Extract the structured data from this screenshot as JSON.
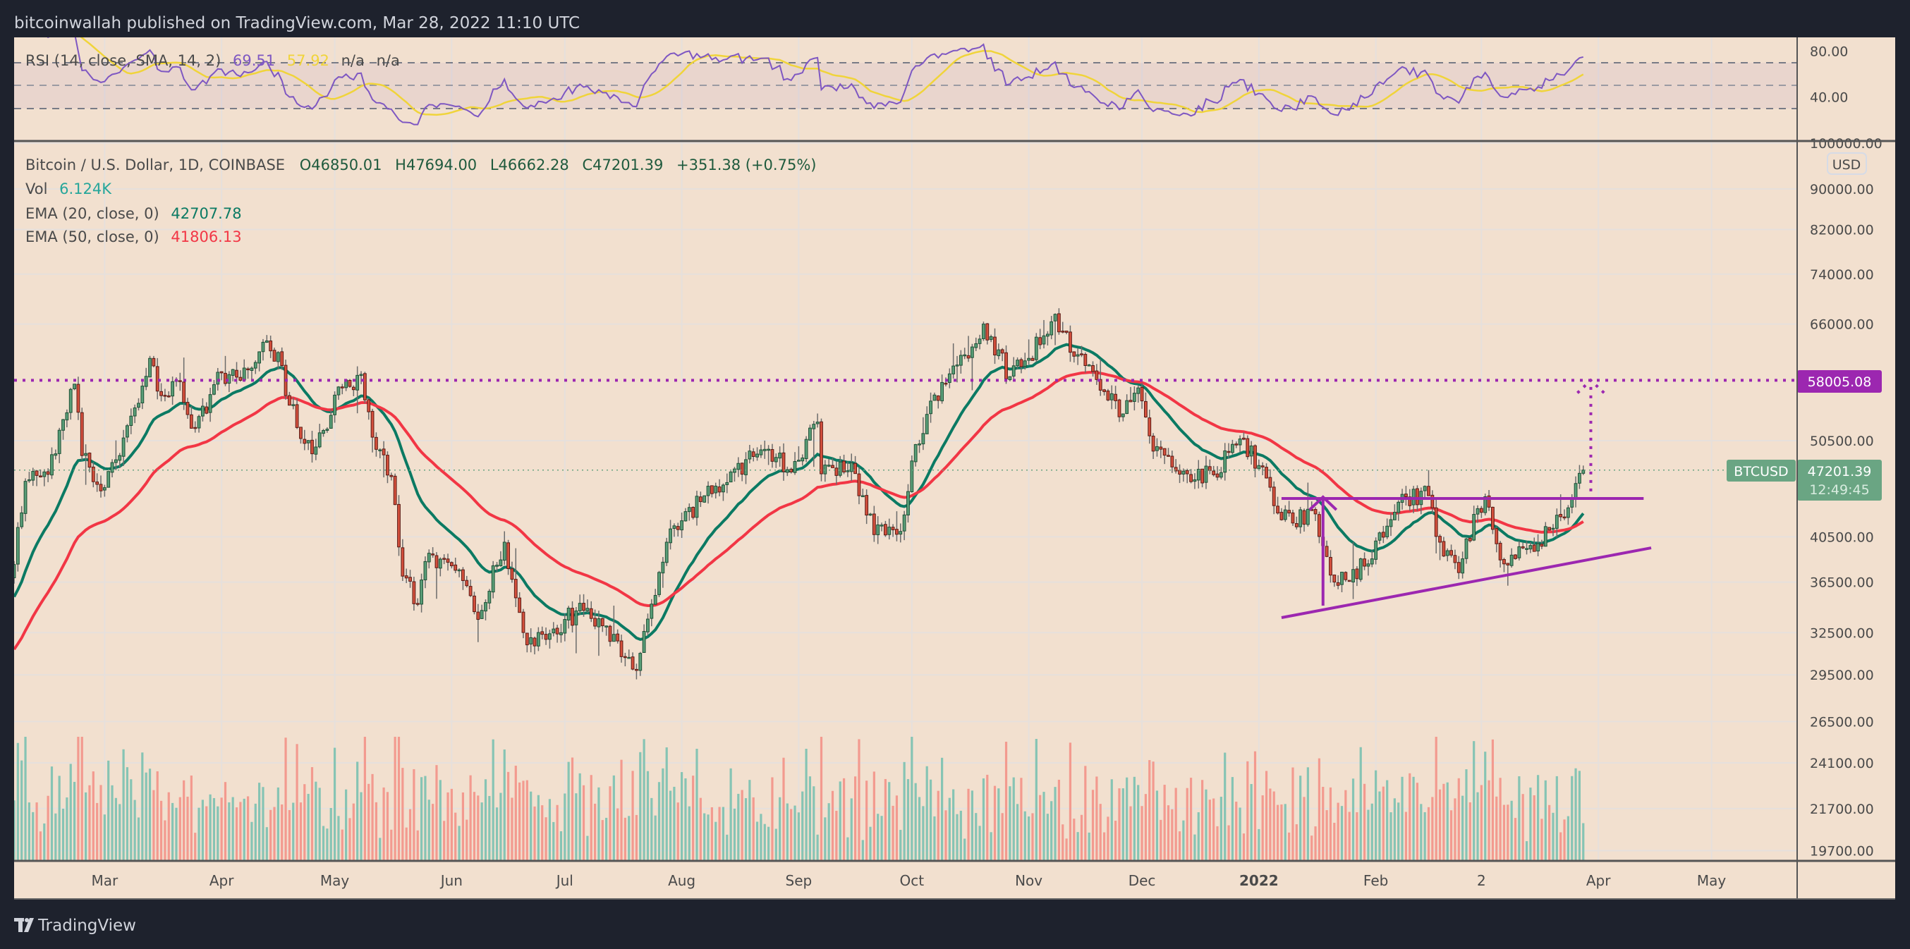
{
  "header": {
    "published": "bitcoinwallah published on TradingView.com, Mar 28, 2022 11:10 UTC"
  },
  "footer": {
    "brand": "TradingView"
  },
  "rsi_legend": {
    "label": "RSI (14, close, SMA, 14, 2)",
    "rsi": "69.51",
    "sma": "57.92",
    "na1": "n/a",
    "na2": "n/a"
  },
  "rsi_axis": [
    {
      "label": "80.00",
      "value": 80
    },
    {
      "label": "40.00",
      "value": 40
    }
  ],
  "legend": {
    "symbol": "Bitcoin / U.S. Dollar, 1D, COINBASE",
    "open": "O46850.01",
    "high": "H47694.00",
    "low": "L46662.28",
    "close": "C47201.39",
    "change": "+351.38 (+0.75%)",
    "vol_label": "Vol",
    "vol_value": "6.124K",
    "ema20_label": "EMA (20, close, 0)",
    "ema20_value": "42707.78",
    "ema50_label": "EMA (50, close, 0)",
    "ema50_value": "41806.13"
  },
  "price_axis": {
    "currency": "USD",
    "ticks": [
      {
        "label": "100000.00",
        "value": 100000
      },
      {
        "label": "90000.00",
        "value": 90000
      },
      {
        "label": "82000.00",
        "value": 82000
      },
      {
        "label": "74000.00",
        "value": 74000
      },
      {
        "label": "66000.00",
        "value": 66000
      },
      {
        "label": "50500.00",
        "value": 50500
      },
      {
        "label": "40500.00",
        "value": 40500
      },
      {
        "label": "36500.00",
        "value": 36500
      },
      {
        "label": "32500.00",
        "value": 32500
      },
      {
        "label": "29500.00",
        "value": 29500
      },
      {
        "label": "26500.00",
        "value": 26500
      },
      {
        "label": "24100.00",
        "value": 24100
      },
      {
        "label": "21700.00",
        "value": 21700
      },
      {
        "label": "19700.00",
        "value": 19700
      }
    ],
    "target_label": "58005.08",
    "symbol_tag": "BTCUSD",
    "last_price": "47201.39",
    "countdown": "12:49:45"
  },
  "time_axis": [
    {
      "label": "Mar",
      "date": "2021-03-01"
    },
    {
      "label": "Apr",
      "date": "2021-04-01"
    },
    {
      "label": "May",
      "date": "2021-05-01"
    },
    {
      "label": "Jun",
      "date": "2021-06-01"
    },
    {
      "label": "Jul",
      "date": "2021-07-01"
    },
    {
      "label": "Aug",
      "date": "2021-08-01"
    },
    {
      "label": "Sep",
      "date": "2021-09-01"
    },
    {
      "label": "Oct",
      "date": "2021-10-01"
    },
    {
      "label": "Nov",
      "date": "2021-11-01"
    },
    {
      "label": "Dec",
      "date": "2021-12-01"
    },
    {
      "label": "2022",
      "date": "2022-01-01",
      "bold": true
    },
    {
      "label": "Feb",
      "date": "2022-02-01"
    },
    {
      "label": "2",
      "date": "2022-03-01"
    },
    {
      "label": "Apr",
      "date": "2022-04-01"
    },
    {
      "label": "May",
      "date": "2022-05-01"
    }
  ],
  "colors": {
    "background": "#f2e0cf",
    "frame": "#1e222d",
    "up": "#5a9e78",
    "up_border": "#1d4f35",
    "down": "#d5503d",
    "down_border": "#5a1a14",
    "vol_up": "#86c4b4",
    "vol_down": "#f39a8f",
    "ema20": "#0b7a63",
    "ema50": "#f23645",
    "rsi": "#7e57c2",
    "rsi_sma": "#f0d43a",
    "drawing": "#9c27b0",
    "last_price": "#6aa583"
  },
  "chart_data": {
    "type": "candlestick",
    "title": "Bitcoin / U.S. Dollar, 1D, COINBASE",
    "scale": "log",
    "start_date": "2021-02-05",
    "last_candle": {
      "date": "2022-03-28",
      "open": 46850.01,
      "high": 47694.0,
      "low": 46662.28,
      "close": 47201.39
    },
    "close_anchors": [
      [
        "2021-02-05",
        38000
      ],
      [
        "2021-02-08",
        46000
      ],
      [
        "2021-02-13",
        47000
      ],
      [
        "2021-02-16",
        49000
      ],
      [
        "2021-02-21",
        57500
      ],
      [
        "2021-02-23",
        48800
      ],
      [
        "2021-02-28",
        45000
      ],
      [
        "2021-03-05",
        48800
      ],
      [
        "2021-03-13",
        61000
      ],
      [
        "2021-03-16",
        56000
      ],
      [
        "2021-03-20",
        58000
      ],
      [
        "2021-03-25",
        52000
      ],
      [
        "2021-04-01",
        59000
      ],
      [
        "2021-04-06",
        58000
      ],
      [
        "2021-04-13",
        63500
      ],
      [
        "2021-04-17",
        60000
      ],
      [
        "2021-04-18",
        56000
      ],
      [
        "2021-04-25",
        49000
      ],
      [
        "2021-05-03",
        57000
      ],
      [
        "2021-05-08",
        58800
      ],
      [
        "2021-05-12",
        49500
      ],
      [
        "2021-05-16",
        46500
      ],
      [
        "2021-05-19",
        37000
      ],
      [
        "2021-05-23",
        34700
      ],
      [
        "2021-05-26",
        39000
      ],
      [
        "2021-06-02",
        37500
      ],
      [
        "2021-06-08",
        33500
      ],
      [
        "2021-06-15",
        40000
      ],
      [
        "2021-06-21",
        31600
      ],
      [
        "2021-06-26",
        32000
      ],
      [
        "2021-07-01",
        33500
      ],
      [
        "2021-07-06",
        34200
      ],
      [
        "2021-07-12",
        33000
      ],
      [
        "2021-07-20",
        29800
      ],
      [
        "2021-07-25",
        35400
      ],
      [
        "2021-07-28",
        40000
      ],
      [
        "2021-08-07",
        44500
      ],
      [
        "2021-08-14",
        47000
      ],
      [
        "2021-08-23",
        49500
      ],
      [
        "2021-08-30",
        47000
      ],
      [
        "2021-09-06",
        52700
      ],
      [
        "2021-09-07",
        46800
      ],
      [
        "2021-09-15",
        48000
      ],
      [
        "2021-09-21",
        40700
      ],
      [
        "2021-09-28",
        41000
      ],
      [
        "2021-10-01",
        48200
      ],
      [
        "2021-10-06",
        55300
      ],
      [
        "2021-10-15",
        61500
      ],
      [
        "2021-10-20",
        66000
      ],
      [
        "2021-10-27",
        58500
      ],
      [
        "2021-11-01",
        61000
      ],
      [
        "2021-11-08",
        67500
      ],
      [
        "2021-11-10",
        64900
      ],
      [
        "2021-11-16",
        60000
      ],
      [
        "2021-11-19",
        58100
      ],
      [
        "2021-11-26",
        53700
      ],
      [
        "2021-11-30",
        57000
      ],
      [
        "2021-12-04",
        49300
      ],
      [
        "2021-12-13",
        46800
      ],
      [
        "2021-12-20",
        46700
      ],
      [
        "2021-12-27",
        50700
      ],
      [
        "2022-01-01",
        47700
      ],
      [
        "2022-01-05",
        43500
      ],
      [
        "2022-01-10",
        41800
      ],
      [
        "2022-01-15",
        43100
      ],
      [
        "2022-01-21",
        36500
      ],
      [
        "2022-01-24",
        36700
      ],
      [
        "2022-01-31",
        38500
      ],
      [
        "2022-02-04",
        41500
      ],
      [
        "2022-02-09",
        44400
      ],
      [
        "2022-02-15",
        44500
      ],
      [
        "2022-02-18",
        40000
      ],
      [
        "2022-02-23",
        37300
      ],
      [
        "2022-02-28",
        43200
      ],
      [
        "2022-03-02",
        44400
      ],
      [
        "2022-03-06",
        38400
      ],
      [
        "2022-03-14",
        39700
      ],
      [
        "2022-03-20",
        41300
      ],
      [
        "2022-03-22",
        42400
      ],
      [
        "2022-03-25",
        44300
      ],
      [
        "2022-03-27",
        46850
      ],
      [
        "2022-03-28",
        47201.39
      ]
    ],
    "indicators": [
      "EMA 20",
      "EMA 50",
      "Volume",
      "RSI 14 with SMA 14"
    ],
    "rsi_bands": [
      70,
      50,
      30
    ],
    "drawings": {
      "resistance": {
        "from": "2022-01-07",
        "to": "2022-04-13",
        "price": 44220
      },
      "trendline": {
        "from": [
          "2022-01-07",
          33640
        ],
        "to": [
          "2022-04-15",
          39480
        ]
      },
      "pattern_height": {
        "date": "2022-01-18",
        "from": 34580,
        "to": 44220
      },
      "target_arrow": {
        "date": "2022-03-30",
        "from": 44950,
        "to": 58005.08
      },
      "target_level": 58005.08
    }
  }
}
